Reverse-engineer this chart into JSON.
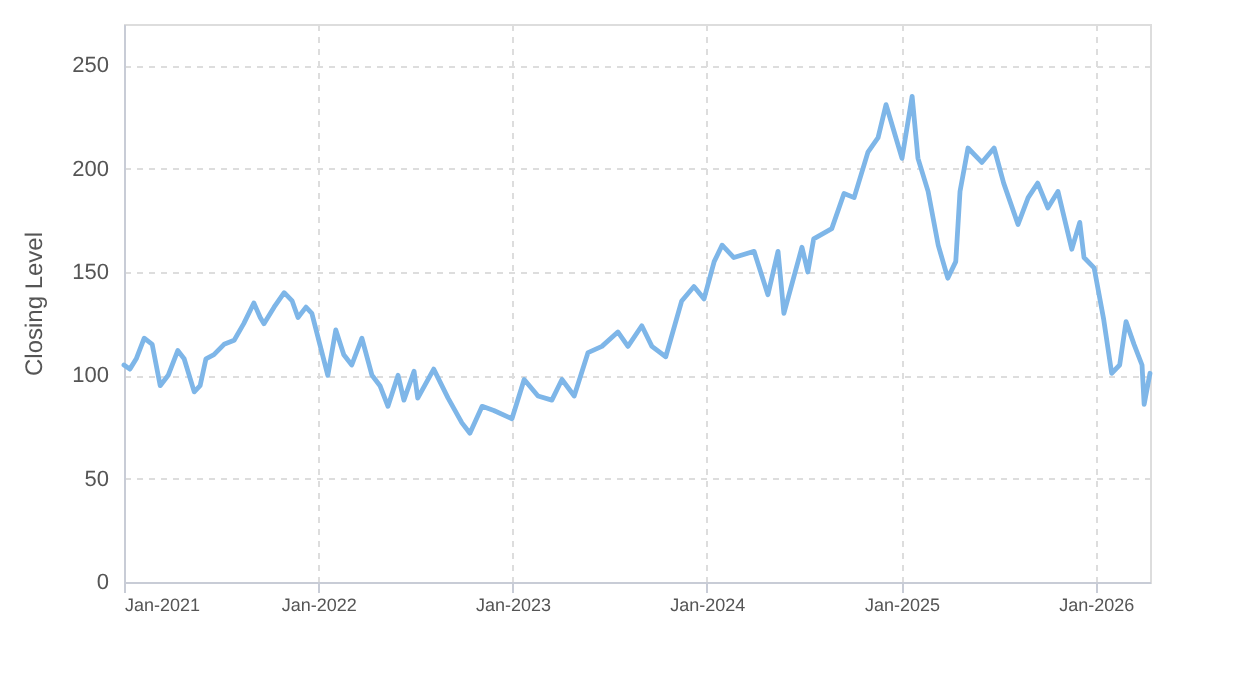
{
  "chart_data": {
    "type": "line",
    "ylabel": "Closing Level",
    "ylim": [
      0,
      270
    ],
    "yticks": [
      0,
      50,
      100,
      150,
      200,
      250
    ],
    "xlim": [
      "2021-01-01",
      "2026-04-13"
    ],
    "xticks": [
      {
        "value": "2021-01-01",
        "label": "Jan-2021"
      },
      {
        "value": "2022-01-01",
        "label": "Jan-2022"
      },
      {
        "value": "2023-01-01",
        "label": "Jan-2023"
      },
      {
        "value": "2024-01-01",
        "label": "Jan-2024"
      },
      {
        "value": "2025-01-01",
        "label": "Jan-2025"
      },
      {
        "value": "2026-01-01",
        "label": "Jan-2026"
      }
    ],
    "grid": true,
    "marker": "none",
    "line_style": "solid",
    "x": [
      "2021-01-01",
      "2021-01-12",
      "2021-01-24",
      "2021-02-08",
      "2021-02-23",
      "2021-03-10",
      "2021-03-25",
      "2021-04-12",
      "2021-04-24",
      "2021-05-13",
      "2021-05-24",
      "2021-06-04",
      "2021-06-19",
      "2021-07-08",
      "2021-07-27",
      "2021-08-14",
      "2021-09-02",
      "2021-09-14",
      "2021-09-21",
      "2021-10-10",
      "2021-10-29",
      "2021-11-13",
      "2021-11-24",
      "2021-12-09",
      "2021-12-20",
      "2022-01-04",
      "2022-01-19",
      "2022-02-03",
      "2022-02-18",
      "2022-03-05",
      "2022-03-24",
      "2022-04-12",
      "2022-04-27",
      "2022-05-12",
      "2022-05-31",
      "2022-06-11",
      "2022-06-30",
      "2022-07-07",
      "2022-08-06",
      "2022-09-02",
      "2022-09-28",
      "2022-10-13",
      "2022-11-05",
      "2022-11-27",
      "2022-12-31",
      "2023-01-23",
      "2023-02-18",
      "2023-03-16",
      "2023-04-04",
      "2023-04-27",
      "2023-05-23",
      "2023-06-18",
      "2023-07-18",
      "2023-08-06",
      "2023-09-01",
      "2023-09-20",
      "2023-10-16",
      "2023-11-15",
      "2023-12-08",
      "2023-12-27",
      "2024-01-15",
      "2024-01-30",
      "2024-02-21",
      "2024-03-30",
      "2024-04-25",
      "2024-05-14",
      "2024-05-25",
      "2024-06-28",
      "2024-07-09",
      "2024-07-20",
      "2024-08-23",
      "2024-09-15",
      "2024-10-04",
      "2024-10-30",
      "2024-11-18",
      "2024-12-03",
      "2024-12-18",
      "2025-01-02",
      "2025-01-21",
      "2025-02-01",
      "2025-02-20",
      "2025-03-11",
      "2025-03-29",
      "2025-04-13",
      "2025-04-21",
      "2025-05-06",
      "2025-06-01",
      "2025-06-24",
      "2025-07-12",
      "2025-08-08",
      "2025-08-27",
      "2025-09-14",
      "2025-10-03",
      "2025-10-22",
      "2025-11-17",
      "2025-12-02",
      "2025-12-10",
      "2025-12-29",
      "2026-01-16",
      "2026-01-31",
      "2026-02-15",
      "2026-02-27",
      "2026-03-14",
      "2026-03-29",
      "2026-04-02",
      "2026-04-13"
    ],
    "series": [
      {
        "color": "#7eb6e8",
        "values": [
          105,
          103,
          108,
          118,
          115,
          95,
          100,
          112,
          108,
          92,
          95,
          108,
          110,
          115,
          117,
          125,
          135,
          128,
          125,
          133,
          140,
          136,
          128,
          133,
          130,
          115,
          100,
          122,
          110,
          105,
          118,
          100,
          95,
          85,
          100,
          88,
          102,
          89,
          103,
          89,
          77,
          72,
          85,
          83,
          79,
          98,
          90,
          88,
          98,
          90,
          111,
          114,
          121,
          114,
          124,
          114,
          109,
          136,
          143,
          137,
          155,
          163,
          157,
          160,
          139,
          160,
          130,
          162,
          150,
          166,
          171,
          188,
          186,
          208,
          215,
          231,
          218,
          205,
          235,
          205,
          189,
          163,
          147,
          155,
          189,
          210,
          203,
          210,
          193,
          173,
          186,
          193,
          181,
          189,
          161,
          174,
          157,
          152,
          127,
          101,
          105,
          126,
          115,
          105,
          86,
          101
        ]
      }
    ]
  }
}
